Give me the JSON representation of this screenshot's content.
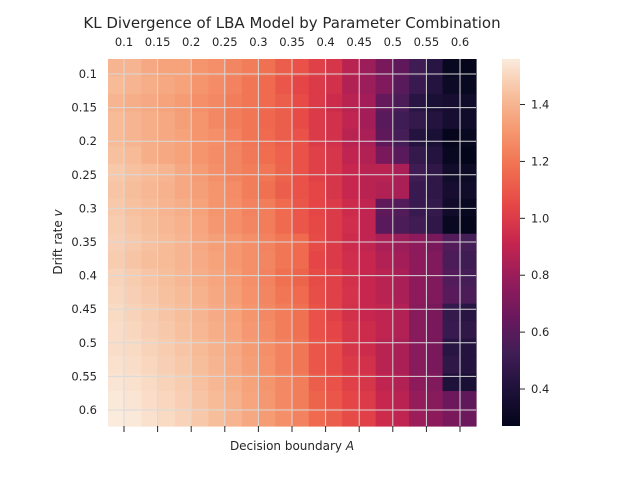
{
  "chart_data": {
    "type": "heatmap",
    "title": "KL Divergence of LBA Model by Parameter Combination",
    "xlabel_prefix": "Decision boundary ",
    "xlabel_symbol": "A",
    "ylabel_prefix": "Drift rate ",
    "ylabel_symbol": "v",
    "x_tick_position": "top",
    "grid": true,
    "colormap": "rocket",
    "x_ticks": [
      "0.1",
      "0.15",
      "0.2",
      "0.25",
      "0.3",
      "0.35",
      "0.4",
      "0.45",
      "0.5",
      "0.55",
      "0.6"
    ],
    "y_ticks": [
      "0.1",
      "0.15",
      "0.2",
      "0.25",
      "0.3",
      "0.35",
      "0.4",
      "0.45",
      "0.5",
      "0.55",
      "0.6"
    ],
    "colorbar": {
      "min": 0.27,
      "max": 1.56,
      "ticks": [
        0.4,
        0.6,
        0.8,
        1.0,
        1.2,
        1.4
      ],
      "tick_labels": [
        "0.4",
        "0.6",
        "0.8",
        "1.0",
        "1.2",
        "1.4"
      ]
    },
    "grid_shape": [
      21,
      22
    ],
    "values": [
      [
        1.4,
        1.4,
        1.36,
        1.34,
        1.34,
        1.3,
        1.28,
        1.25,
        1.22,
        1.18,
        1.12,
        1.08,
        1.02,
        0.98,
        0.88,
        0.8,
        0.7,
        0.62,
        0.52,
        0.44,
        0.3,
        0.28
      ],
      [
        1.42,
        1.4,
        1.38,
        1.36,
        1.34,
        1.3,
        1.27,
        1.24,
        1.2,
        1.16,
        1.1,
        1.04,
        1.0,
        0.96,
        0.86,
        0.8,
        0.72,
        0.6,
        0.5,
        0.42,
        0.32,
        0.3
      ],
      [
        1.4,
        1.38,
        1.36,
        1.34,
        1.32,
        1.28,
        1.26,
        1.22,
        1.2,
        1.16,
        1.12,
        1.06,
        1.0,
        0.94,
        0.88,
        0.82,
        0.64,
        0.56,
        0.44,
        0.38,
        0.36,
        0.34
      ],
      [
        1.42,
        1.4,
        1.38,
        1.36,
        1.33,
        1.3,
        1.26,
        1.22,
        1.2,
        1.15,
        1.12,
        1.06,
        1.0,
        0.96,
        0.9,
        0.82,
        0.6,
        0.52,
        0.48,
        0.42,
        0.36,
        0.34
      ],
      [
        1.42,
        1.4,
        1.38,
        1.36,
        1.34,
        1.3,
        1.28,
        1.24,
        1.2,
        1.16,
        1.12,
        1.08,
        1.0,
        0.96,
        0.88,
        0.84,
        0.62,
        0.54,
        0.42,
        0.38,
        0.28,
        0.3
      ],
      [
        1.44,
        1.42,
        1.38,
        1.36,
        1.34,
        1.3,
        1.27,
        1.25,
        1.21,
        1.17,
        1.13,
        1.08,
        1.02,
        0.98,
        0.9,
        0.86,
        0.7,
        0.6,
        0.48,
        0.42,
        0.3,
        0.27
      ],
      [
        1.46,
        1.44,
        1.42,
        1.4,
        1.36,
        1.32,
        1.28,
        1.25,
        1.22,
        1.2,
        1.14,
        1.08,
        1.02,
        0.98,
        0.92,
        0.88,
        0.88,
        0.84,
        0.52,
        0.46,
        0.34,
        0.32
      ],
      [
        1.45,
        1.43,
        1.41,
        1.39,
        1.36,
        1.33,
        1.3,
        1.27,
        1.22,
        1.18,
        1.12,
        1.08,
        1.04,
        0.98,
        0.92,
        0.88,
        0.86,
        0.84,
        0.5,
        0.46,
        0.36,
        0.34
      ],
      [
        1.46,
        1.44,
        1.42,
        1.4,
        1.38,
        1.34,
        1.3,
        1.28,
        1.24,
        1.22,
        1.16,
        1.1,
        1.04,
        1.0,
        0.94,
        0.9,
        0.62,
        0.58,
        0.5,
        0.48,
        0.34,
        0.3
      ],
      [
        1.47,
        1.45,
        1.43,
        1.41,
        1.39,
        1.35,
        1.31,
        1.28,
        1.25,
        1.22,
        1.16,
        1.1,
        1.05,
        1.0,
        0.95,
        0.9,
        0.6,
        0.56,
        0.52,
        0.46,
        0.3,
        0.28
      ],
      [
        1.48,
        1.46,
        1.44,
        1.42,
        1.4,
        1.36,
        1.33,
        1.31,
        1.28,
        1.24,
        1.2,
        1.16,
        1.06,
        1.0,
        0.94,
        0.9,
        0.84,
        0.8,
        0.76,
        0.7,
        0.58,
        0.54
      ],
      [
        1.47,
        1.45,
        1.43,
        1.42,
        1.4,
        1.37,
        1.34,
        1.31,
        1.28,
        1.25,
        1.2,
        1.16,
        1.04,
        1.0,
        0.95,
        0.92,
        0.86,
        0.82,
        0.76,
        0.72,
        0.56,
        0.52
      ],
      [
        1.49,
        1.47,
        1.45,
        1.43,
        1.41,
        1.38,
        1.35,
        1.32,
        1.28,
        1.24,
        1.18,
        1.14,
        1.06,
        1.02,
        0.96,
        0.92,
        0.88,
        0.84,
        0.76,
        0.72,
        0.58,
        0.54
      ],
      [
        1.5,
        1.48,
        1.46,
        1.44,
        1.42,
        1.39,
        1.36,
        1.33,
        1.29,
        1.25,
        1.2,
        1.16,
        1.07,
        1.02,
        0.97,
        0.92,
        0.88,
        0.84,
        0.76,
        0.72,
        0.6,
        0.56
      ],
      [
        1.51,
        1.49,
        1.47,
        1.45,
        1.43,
        1.4,
        1.37,
        1.34,
        1.3,
        1.26,
        1.22,
        1.18,
        1.08,
        1.02,
        0.96,
        0.92,
        0.9,
        0.86,
        0.74,
        0.7,
        0.48,
        0.44
      ],
      [
        1.52,
        1.5,
        1.48,
        1.46,
        1.44,
        1.41,
        1.38,
        1.35,
        1.31,
        1.27,
        1.22,
        1.18,
        1.08,
        1.04,
        0.98,
        0.94,
        0.9,
        0.86,
        0.74,
        0.7,
        0.5,
        0.46
      ],
      [
        1.52,
        1.51,
        1.49,
        1.47,
        1.45,
        1.42,
        1.39,
        1.36,
        1.32,
        1.28,
        1.24,
        1.2,
        1.1,
        1.06,
        0.98,
        0.94,
        0.88,
        0.84,
        0.74,
        0.7,
        0.44,
        0.42
      ],
      [
        1.53,
        1.52,
        1.5,
        1.48,
        1.46,
        1.43,
        1.4,
        1.37,
        1.33,
        1.29,
        1.24,
        1.2,
        1.1,
        1.06,
        1.0,
        0.96,
        0.88,
        0.84,
        0.74,
        0.7,
        0.46,
        0.42
      ],
      [
        1.54,
        1.53,
        1.51,
        1.49,
        1.47,
        1.44,
        1.41,
        1.38,
        1.34,
        1.3,
        1.26,
        1.22,
        1.12,
        1.08,
        1.02,
        0.98,
        0.9,
        0.86,
        0.76,
        0.72,
        0.4,
        0.38
      ],
      [
        1.55,
        1.54,
        1.52,
        1.5,
        1.48,
        1.45,
        1.42,
        1.39,
        1.35,
        1.31,
        1.26,
        1.22,
        1.14,
        1.1,
        1.04,
        1.0,
        0.92,
        0.88,
        0.78,
        0.74,
        0.66,
        0.62
      ],
      [
        1.56,
        1.55,
        1.53,
        1.51,
        1.49,
        1.46,
        1.43,
        1.4,
        1.36,
        1.32,
        1.28,
        1.24,
        1.16,
        1.12,
        1.06,
        1.02,
        0.94,
        0.9,
        0.8,
        0.76,
        0.7,
        0.66
      ]
    ]
  }
}
